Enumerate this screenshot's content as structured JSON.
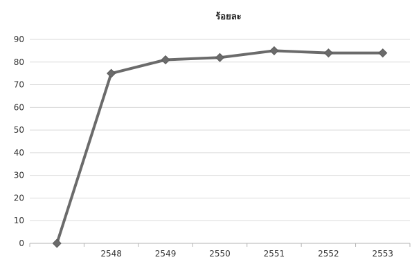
{
  "chart_data": {
    "type": "line",
    "title": "ร้อยละ",
    "xlabel": "",
    "ylabel": "",
    "categories": [
      "",
      "2548",
      "2549",
      "2550",
      "2551",
      "2552",
      "2553"
    ],
    "series": [
      {
        "values": [
          0,
          75,
          81,
          82,
          85,
          84,
          84
        ]
      }
    ],
    "ylim": [
      0,
      90
    ],
    "yticks": [
      "0",
      "10",
      "20",
      "30",
      "40",
      "50",
      "60",
      "70",
      "80",
      "90"
    ],
    "grid": true,
    "legend": "none",
    "colors": {
      "line": "#6b6b6b",
      "marker": "#6b6b6b",
      "grid": "#d9d9d9",
      "axis": "#b3b3b3"
    }
  }
}
